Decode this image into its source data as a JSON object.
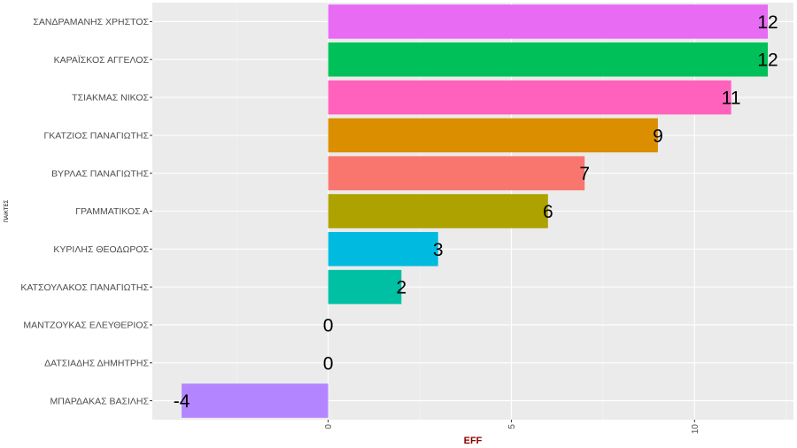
{
  "chart_data": {
    "type": "bar",
    "orientation": "horizontal",
    "xlabel": "EFF",
    "ylabel": "ΠΑΙΚΤΕΣ",
    "xlim": [
      -4.8,
      12.7
    ],
    "x_ticks": [
      0,
      5,
      10
    ],
    "x_tick_labels": [
      "0",
      "5",
      "10"
    ],
    "grid": true,
    "legend": "none",
    "categories": [
      "ΣΑΝΔΡΑΜΑΝΗΣ ΧΡΗΣΤΟΣ",
      "ΚΑΡΑΪΣΚΟΣ ΑΓΓΕΛΟΣ",
      "ΤΣΙΑΚΜΑΣ ΝΙΚΟΣ",
      "ΓΚΑΤΖΙΟΣ ΠΑΝΑΓΙΩΤΗΣ",
      "ΒΥΡΛΑΣ ΠΑΝΑΓΙΩΤΗΣ",
      "ΓΡΑΜΜΑΤΙΚΟΣ Α",
      "ΚΥΡΙΛΗΣ ΘΕΟΔΩΡΟΣ",
      "ΚΑΤΣΟΥΛΑΚΟΣ ΠΑΝΑΓΙΩΤΗΣ",
      "ΜΑΝΤΖΟΥΚΑΣ ΕΛΕΥΘΕΡΙΟΣ",
      "ΔΑΤΣΙΑΔΗΣ ΔΗΜΗΤΡΗΣ",
      "ΜΠΑΡΔΑΚΑΣ ΒΑΣΙΛΗΣ"
    ],
    "values": [
      12,
      12,
      11,
      9,
      7,
      6,
      3,
      2,
      0,
      0,
      -4
    ],
    "value_labels": [
      "12",
      "12",
      "11",
      "9",
      "7",
      "6",
      "3",
      "2",
      "0",
      "0",
      "-4"
    ],
    "colors": [
      "#E76BF3",
      "#00C159",
      "#FF62BC",
      "#DB8E00",
      "#F8766D",
      "#AEA200",
      "#00BAE0",
      "#00C0A4",
      "#9590FF",
      "#00A6FF",
      "#B385FF"
    ]
  }
}
